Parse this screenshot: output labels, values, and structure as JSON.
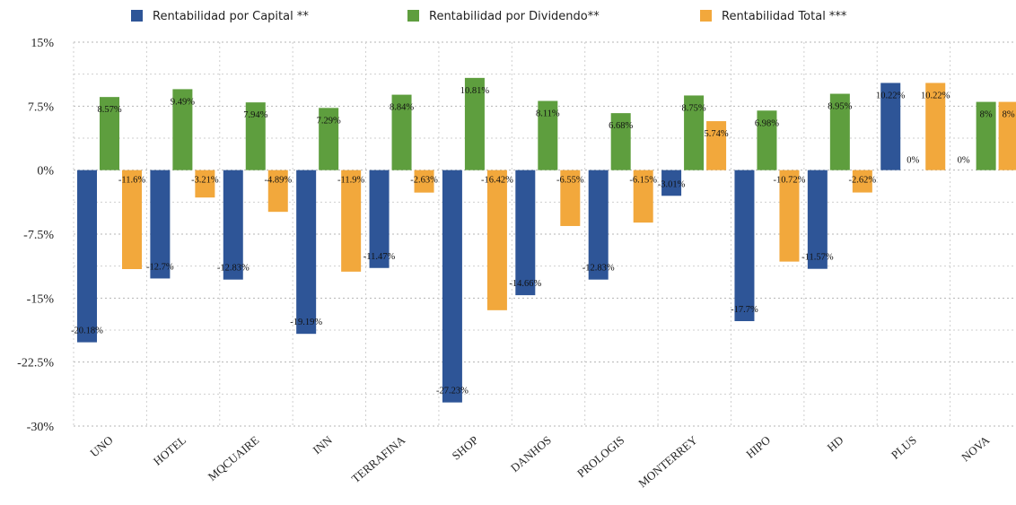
{
  "chart_data": {
    "type": "bar",
    "categories": [
      "UNO",
      "HOTEL",
      "MQCUAIRE",
      "INN",
      "TERRAFINA",
      "SHOP",
      "DANHOS",
      "PROLOGIS",
      "MONTERREY",
      "HIPO",
      "HD",
      "PLUS",
      "NOVA"
    ],
    "series": [
      {
        "name": "Rentabilidad por Capital **",
        "color": "#2E5597",
        "values": [
          -20.18,
          -12.7,
          -12.83,
          -19.19,
          -11.47,
          -27.23,
          -14.66,
          -12.83,
          -3.01,
          -17.7,
          -11.57,
          10.22,
          0
        ],
        "labels": [
          "-20.18%",
          "-12.7%",
          "-12.83%",
          "-19.19%",
          "-11.47%",
          "-27.23%",
          "-14.66%",
          "-12.83%",
          "-3.01%",
          "-17.7%",
          "-11.57%",
          "10.22%",
          "0%"
        ]
      },
      {
        "name": "Rentabilidad por Dividendo**",
        "color": "#5E9E3E",
        "values": [
          8.57,
          9.49,
          7.94,
          7.29,
          8.84,
          10.81,
          8.11,
          6.68,
          8.75,
          6.98,
          8.95,
          0,
          8
        ],
        "labels": [
          "8.57%",
          "9.49%",
          "7.94%",
          "7.29%",
          "8.84%",
          "10.81%",
          "8.11%",
          "6.68%",
          "8.75%",
          "6.98%",
          "8.95%",
          "0%",
          "8%"
        ]
      },
      {
        "name": "Rentabilidad Total ***",
        "color": "#F2A83C",
        "values": [
          -11.6,
          -3.21,
          -4.89,
          -11.9,
          -2.63,
          -16.42,
          -6.55,
          -6.15,
          5.74,
          -10.72,
          -2.62,
          10.22,
          8
        ],
        "labels": [
          "-11.6%",
          "-3.21%",
          "-4.89%",
          "-11.9%",
          "-2.63%",
          "-16.42%",
          "-6.55%",
          "-6.15%",
          "5.74%",
          "-10.72%",
          "-2.62%",
          "10.22%",
          "8%"
        ]
      }
    ],
    "yticks": [
      15,
      7.5,
      0,
      -7.5,
      -15,
      -22.5,
      -30
    ],
    "ytick_labels": [
      "15%",
      "7.5%",
      "0%",
      "-7.5%",
      "-15%",
      "-22.5%",
      "-30%"
    ],
    "ylim": [
      -30,
      15
    ],
    "grid": true,
    "legend_position": "top"
  }
}
